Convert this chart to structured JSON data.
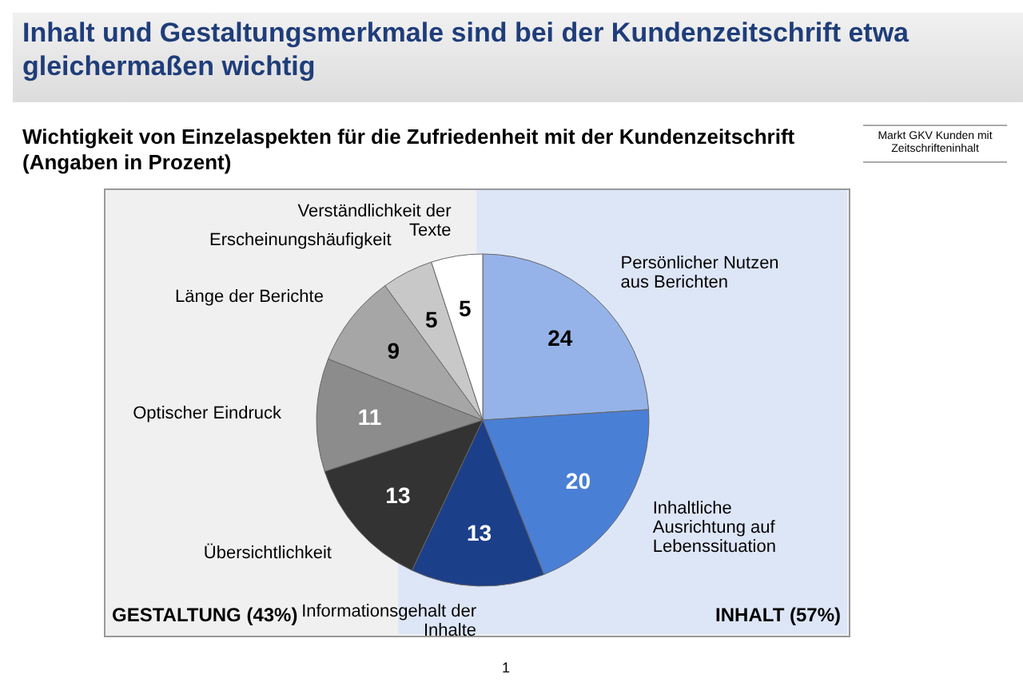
{
  "chart_data": {
    "type": "pie",
    "title": "Inhalt und Gestaltungsmerkmale sind bei der Kundenzeitschrift etwa gleichermaßen wichtig",
    "subtitle": "Wichtigkeit von Einzelaspekten für die Zufriedenheit mit der Kundenzeitschrift (Angaben in Prozent)",
    "categories": [
      "Persönlicher Nutzen aus Berichten",
      "Inhaltliche Ausrichtung auf Lebenssituation",
      "Informationsgehalt der Inhalte",
      "Übersichtlichkeit",
      "Optischer Eindruck",
      "Länge der Berichte",
      "Erscheinungshäufigkeit",
      "Verständlichkeit der Texte"
    ],
    "values": [
      24,
      20,
      13,
      13,
      11,
      9,
      5,
      5
    ],
    "colors": [
      "#95b3e8",
      "#4a7fd6",
      "#1c3f8a",
      "#333333",
      "#8c8c8c",
      "#a6a6a6",
      "#c8c8c8",
      "#ffffff"
    ],
    "data_labels": true,
    "annotations": [
      "GESTALTUNG (43%)",
      "INHALT (57%)",
      "Markt GKV Kunden mit Zeitschrifteninhalt",
      "1"
    ]
  }
}
